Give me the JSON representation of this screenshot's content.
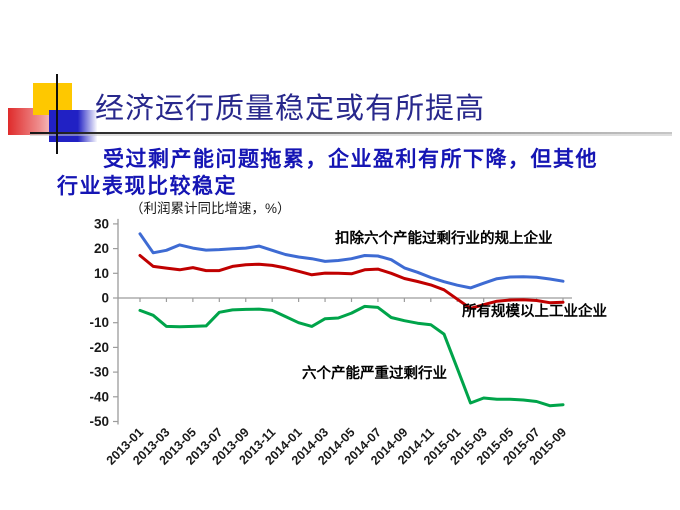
{
  "slide": {
    "title": "经济运行质量稳定或有所提高",
    "subtitle": {
      "line1": "受过剩产能问题拖累，企业盈利有所下降，但其他",
      "line2": "行业表现比较稳定"
    },
    "accent_colors": {
      "title_text": "#28288C",
      "subtitle_text": "#1515B4",
      "logo_yellow": "#FEC800",
      "logo_blue": "#2121C4",
      "logo_red": "#DF2B2B"
    }
  },
  "chart_data": {
    "type": "line",
    "note": "（利润累计同比增速，%）",
    "ylim": [
      -50,
      30
    ],
    "ytick_step": 10,
    "grid": false,
    "legend_position": "inline-annotations",
    "x_tick_labels": [
      "2013-01",
      "2013-03",
      "2013-05",
      "2013-07",
      "2013-09",
      "2013-11",
      "2014-01",
      "2014-03",
      "2014-05",
      "2014-07",
      "2014-09",
      "2014-11",
      "2015-01",
      "2015-03",
      "2015-05",
      "2015-07",
      "2015-09"
    ],
    "x_months": [
      "2013-01",
      "2013-02",
      "2013-03",
      "2013-04",
      "2013-05",
      "2013-06",
      "2013-07",
      "2013-08",
      "2013-09",
      "2013-10",
      "2013-11",
      "2013-12",
      "2014-01",
      "2014-02",
      "2014-03",
      "2014-04",
      "2014-05",
      "2014-06",
      "2014-07",
      "2014-08",
      "2014-09",
      "2014-10",
      "2014-11",
      "2014-12",
      "2015-01",
      "2015-02",
      "2015-03",
      "2015-04",
      "2015-05",
      "2015-06",
      "2015-07",
      "2015-08",
      "2015-09"
    ],
    "series": [
      {
        "name": "扣除六个产能过剩行业的规上企业",
        "color": "#3e6bd3",
        "values": [
          26.0,
          18.3,
          19.3,
          21.5,
          20.2,
          19.4,
          19.6,
          19.9,
          20.2,
          21.0,
          19.3,
          17.6,
          16.6,
          15.9,
          14.8,
          15.2,
          15.9,
          17.2,
          17.0,
          15.5,
          12.2,
          10.4,
          8.3,
          6.6,
          5.2,
          4.1,
          6.0,
          7.8,
          8.5,
          8.6,
          8.4,
          7.7,
          6.8
        ]
      },
      {
        "name": "所有规模以上工业企业",
        "color": "#c00000",
        "values": [
          17.2,
          12.8,
          12.1,
          11.4,
          12.3,
          11.1,
          11.1,
          12.8,
          13.5,
          13.7,
          13.2,
          12.2,
          10.8,
          9.4,
          10.1,
          10.0,
          9.8,
          11.4,
          11.7,
          10.0,
          7.9,
          6.7,
          5.3,
          3.3,
          -0.5,
          -4.2,
          -2.7,
          -1.3,
          -0.8,
          -0.7,
          -1.0,
          -1.9,
          -1.7
        ]
      },
      {
        "name": "六个产能严重过剩行业",
        "color": "#00a44a",
        "values": [
          -5.0,
          -7.0,
          -11.5,
          -11.6,
          -11.5,
          -11.3,
          -5.8,
          -4.8,
          -4.6,
          -4.5,
          -5.0,
          -7.5,
          -10.0,
          -11.5,
          -8.4,
          -8.1,
          -6.1,
          -3.4,
          -3.8,
          -7.9,
          -9.2,
          -10.2,
          -10.8,
          -14.6,
          -28.5,
          -42.5,
          -40.5,
          -41.0,
          -41.0,
          -41.3,
          -41.9,
          -43.6,
          -43.2
        ]
      }
    ]
  }
}
